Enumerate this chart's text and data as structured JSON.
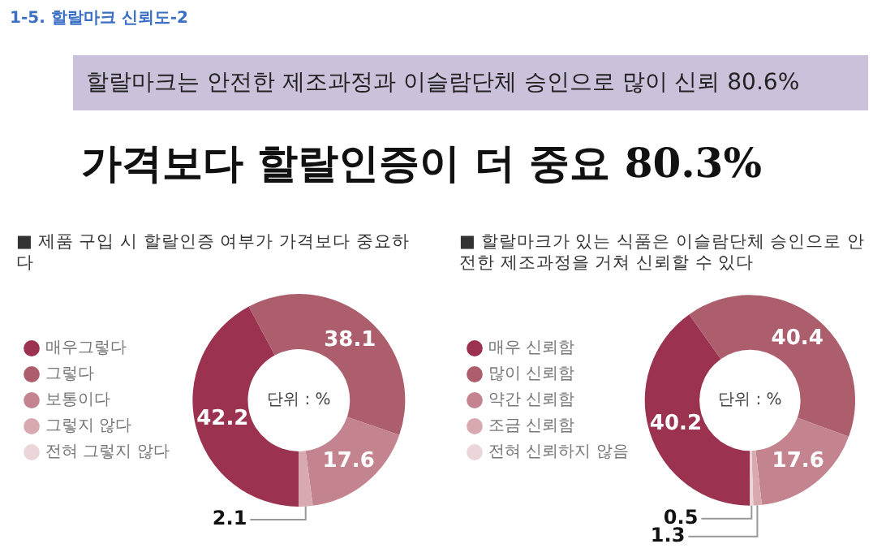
{
  "chart_data": [
    {
      "type": "other",
      "title": "1-5. 할랄마크 신뢰도-2",
      "annotations": [
        "할랄마크는 안전한 제조과정과 이슬람단체 승인으로 많이 신뢰 80.6%",
        "가격보다 할랄인증이 더 중요 80.3%"
      ]
    },
    {
      "type": "donut",
      "title": "■ 제품 구입 시 할랄인증 여부가 가격보다 중요하다",
      "categories": [
        "매우그렇다",
        "그렇다",
        "보통이다",
        "그렇지 않다",
        "전혀 그렇지 않다"
      ],
      "values": [
        42.2,
        38.1,
        17.6,
        2.1,
        0
      ],
      "value_labels": [
        "42.2",
        "38.1",
        "17.6",
        "2.1",
        null
      ],
      "colors": [
        "#9b3350",
        "#ad5e6d",
        "#c4848f",
        "#d9a9b0",
        "#ecd5d8"
      ],
      "legend": "left",
      "annotations": [
        "단위 : %"
      ]
    },
    {
      "type": "donut",
      "title": "■ 할랄마크가 있는 식품은 이슬람단체 승인으로 안전한 제조과정을 거쳐 신뢰할 수 있다",
      "categories": [
        "매우 신뢰함",
        "많이 신뢰함",
        "약간 신뢰함",
        "조금 신뢰함",
        "전혀 신뢰하지 않음"
      ],
      "values": [
        40.2,
        40.4,
        17.6,
        1.3,
        0.5
      ],
      "value_labels": [
        "40.2",
        "40.4",
        "17.6",
        "1.3",
        "0.5"
      ],
      "colors": [
        "#9b3350",
        "#ad5e6d",
        "#c4848f",
        "#d9a9b0",
        "#ecd5d8"
      ],
      "legend": "left",
      "annotations": [
        "단위 : %"
      ]
    }
  ]
}
